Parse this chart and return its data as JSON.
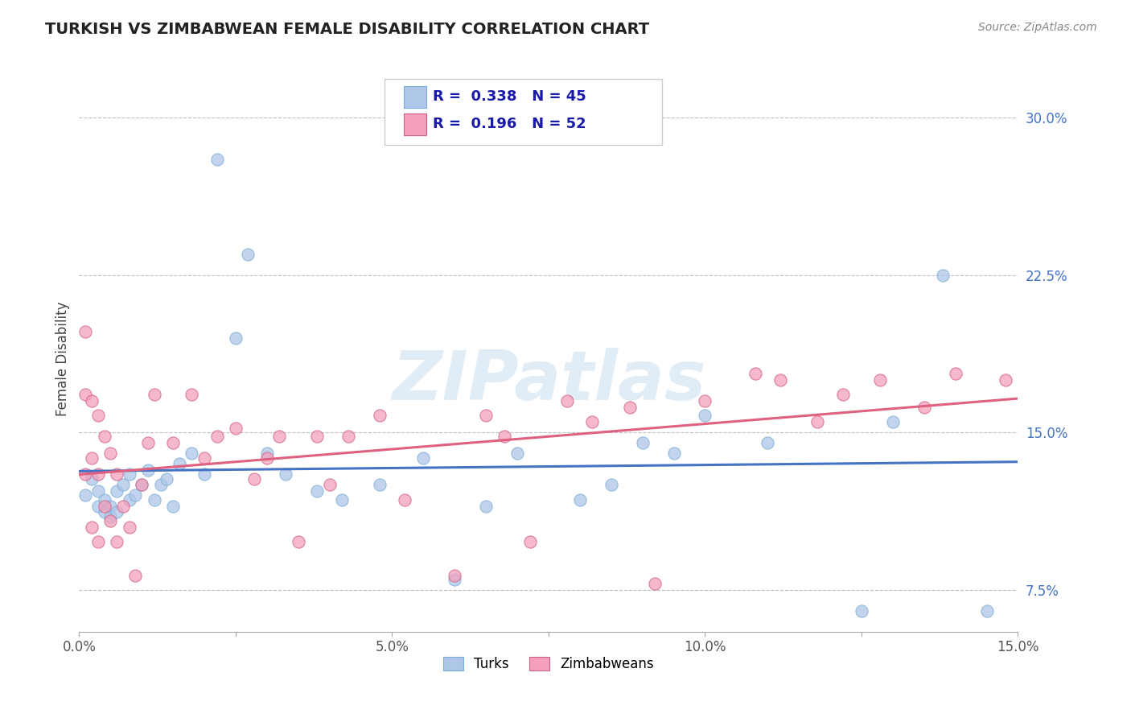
{
  "title": "TURKISH VS ZIMBABWEAN FEMALE DISABILITY CORRELATION CHART",
  "source": "Source: ZipAtlas.com",
  "ylabel": "Female Disability",
  "xlim": [
    0.0,
    0.15
  ],
  "ylim": [
    0.055,
    0.315
  ],
  "xticks": [
    0.0,
    0.025,
    0.05,
    0.075,
    0.1,
    0.125,
    0.15
  ],
  "xticklabels": [
    "0.0%",
    "",
    "5.0%",
    "",
    "10.0%",
    "",
    "15.0%"
  ],
  "yticks": [
    0.075,
    0.15,
    0.225,
    0.3
  ],
  "yticklabels": [
    "7.5%",
    "15.0%",
    "22.5%",
    "30.0%"
  ],
  "turks_color": "#aec6e8",
  "turks_edge": "#7aaed6",
  "zimbabweans_color": "#f4a0bc",
  "zimbabweans_edge": "#d06080",
  "trendline_turks_color": "#4472c4",
  "trendline_zimb_color": "#e06080",
  "legend_R_turks": "0.338",
  "legend_N_turks": "45",
  "legend_R_zimb": "0.196",
  "legend_N_zimb": "52",
  "watermark": "ZIPatlas",
  "background_color": "#ffffff",
  "grid_color": "#c0c0c0",
  "title_color": "#222222",
  "source_color": "#888888",
  "ytick_color": "#4472c4",
  "xtick_color": "#555555",
  "turks_x": [
    0.001,
    0.002,
    0.003,
    0.003,
    0.004,
    0.004,
    0.005,
    0.005,
    0.006,
    0.006,
    0.007,
    0.008,
    0.008,
    0.009,
    0.01,
    0.011,
    0.012,
    0.013,
    0.014,
    0.015,
    0.016,
    0.018,
    0.02,
    0.022,
    0.025,
    0.027,
    0.03,
    0.033,
    0.038,
    0.042,
    0.048,
    0.055,
    0.06,
    0.065,
    0.07,
    0.08,
    0.085,
    0.09,
    0.095,
    0.1,
    0.11,
    0.125,
    0.13,
    0.138,
    0.145
  ],
  "turks_y": [
    0.12,
    0.128,
    0.122,
    0.115,
    0.118,
    0.112,
    0.115,
    0.11,
    0.122,
    0.112,
    0.125,
    0.118,
    0.13,
    0.12,
    0.125,
    0.132,
    0.118,
    0.125,
    0.128,
    0.115,
    0.135,
    0.14,
    0.13,
    0.28,
    0.195,
    0.235,
    0.14,
    0.13,
    0.122,
    0.118,
    0.125,
    0.138,
    0.08,
    0.115,
    0.14,
    0.118,
    0.125,
    0.145,
    0.14,
    0.158,
    0.145,
    0.065,
    0.155,
    0.225,
    0.065
  ],
  "zimb_x": [
    0.001,
    0.001,
    0.001,
    0.002,
    0.002,
    0.002,
    0.003,
    0.003,
    0.003,
    0.004,
    0.004,
    0.005,
    0.005,
    0.006,
    0.006,
    0.007,
    0.008,
    0.009,
    0.01,
    0.011,
    0.012,
    0.015,
    0.018,
    0.02,
    0.022,
    0.025,
    0.028,
    0.03,
    0.032,
    0.035,
    0.038,
    0.04,
    0.043,
    0.048,
    0.052,
    0.06,
    0.065,
    0.068,
    0.072,
    0.078,
    0.082,
    0.088,
    0.092,
    0.1,
    0.108,
    0.112,
    0.118,
    0.122,
    0.128,
    0.135,
    0.14,
    0.148
  ],
  "zimb_y": [
    0.198,
    0.168,
    0.13,
    0.165,
    0.138,
    0.105,
    0.158,
    0.13,
    0.098,
    0.148,
    0.115,
    0.14,
    0.108,
    0.13,
    0.098,
    0.115,
    0.105,
    0.082,
    0.125,
    0.145,
    0.168,
    0.145,
    0.168,
    0.138,
    0.148,
    0.152,
    0.128,
    0.138,
    0.148,
    0.098,
    0.148,
    0.125,
    0.148,
    0.158,
    0.118,
    0.082,
    0.158,
    0.148,
    0.098,
    0.165,
    0.155,
    0.162,
    0.078,
    0.165,
    0.178,
    0.175,
    0.155,
    0.168,
    0.175,
    0.162,
    0.178,
    0.175
  ]
}
